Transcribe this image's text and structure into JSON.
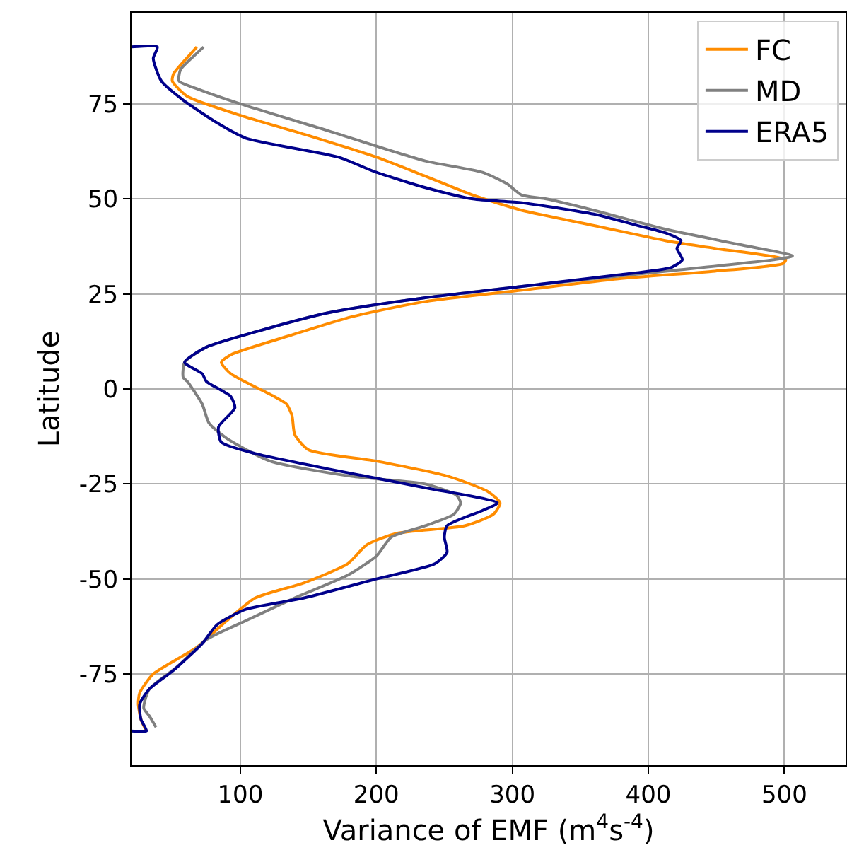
{
  "chart_data": {
    "type": "line",
    "xlabel": "Variance of EMF (m$^{4}$s$^{-4}$)",
    "ylabel": "Latitude",
    "xlim": [
      20,
      545
    ],
    "ylim": [
      -99,
      99
    ],
    "xticks": [
      100,
      200,
      300,
      400,
      500
    ],
    "yticks": [
      -75,
      -50,
      -25,
      0,
      25,
      50,
      75
    ],
    "grid": true,
    "legend": "top right",
    "marker": "none",
    "line_style": "solid",
    "series": [
      {
        "name": "FC",
        "color": "#ff8c00",
        "x": [
          68,
          63,
          51,
          50,
          61,
          100,
          147,
          200,
          236,
          271,
          307,
          360,
          413,
          449,
          501,
          499,
          449,
          378,
          307,
          236,
          182,
          136,
          93,
          86,
          93,
          125,
          134,
          138,
          140,
          150,
          200,
          253,
          282,
          291,
          286,
          265,
          215,
          193,
          179,
          147,
          111,
          90,
          68,
          36,
          26,
          25,
          27,
          31
        ],
        "values": [
          90,
          88,
          83,
          81,
          77,
          72,
          67,
          61,
          56,
          51,
          47,
          43,
          39,
          37,
          34,
          33,
          31,
          29,
          26,
          23,
          19,
          14,
          9,
          7,
          4,
          -2,
          -4,
          -7,
          -12,
          -16,
          -19,
          -23,
          -27,
          -30,
          -33,
          -36,
          -38,
          -41,
          -46,
          -51,
          -55,
          -61,
          -68,
          -75,
          -80,
          -83,
          -87,
          -90
        ]
      },
      {
        "name": "MD",
        "color": "#808080",
        "x": [
          73,
          67,
          56,
          55,
          68,
          100,
          164,
          236,
          278,
          296,
          307,
          325,
          360,
          413,
          467,
          506,
          492,
          413,
          307,
          236,
          164,
          111,
          75,
          59,
          58,
          61,
          72,
          77,
          90,
          122,
          182,
          236,
          259,
          262,
          257,
          236,
          211,
          200,
          179,
          140,
          104,
          75,
          54,
          33,
          29,
          33,
          38
        ],
        "values": [
          90,
          88,
          84,
          81,
          79,
          75,
          68,
          60,
          57,
          54,
          51,
          50,
          47,
          42,
          38,
          35,
          34,
          31,
          27,
          24,
          20,
          15,
          11,
          7,
          3,
          2,
          -4,
          -9,
          -13,
          -19,
          -23,
          -25,
          -28,
          -30,
          -33,
          -36,
          -39,
          -44,
          -49,
          -55,
          -61,
          -66,
          -73,
          -79,
          -84,
          -86,
          -89
        ]
      },
      {
        "name": "ERA5",
        "color": "#00008b",
        "x": [
          20,
          39,
          36,
          42,
          58,
          83,
          104,
          172,
          200,
          236,
          271,
          307,
          360,
          392,
          413,
          424,
          421,
          425,
          417,
          378,
          307,
          236,
          164,
          111,
          75,
          59,
          72,
          75,
          93,
          96,
          84,
          86,
          111,
          164,
          236,
          289,
          278,
          252,
          250,
          252,
          243,
          200,
          147,
          104,
          83,
          72,
          51,
          33,
          26,
          27,
          31,
          20
        ],
        "values": [
          90,
          90,
          87,
          81,
          76,
          70,
          66,
          61,
          57,
          53,
          50,
          49,
          46,
          43,
          41,
          39,
          37,
          34,
          32,
          30,
          27,
          24,
          20,
          15,
          11,
          7,
          4,
          2,
          -2,
          -5,
          -10,
          -14,
          -17,
          -21,
          -26,
          -30,
          -32,
          -36,
          -39,
          -43,
          -46,
          -50,
          -55,
          -58,
          -62,
          -67,
          -74,
          -79,
          -83,
          -87,
          -90,
          -90
        ]
      }
    ]
  }
}
